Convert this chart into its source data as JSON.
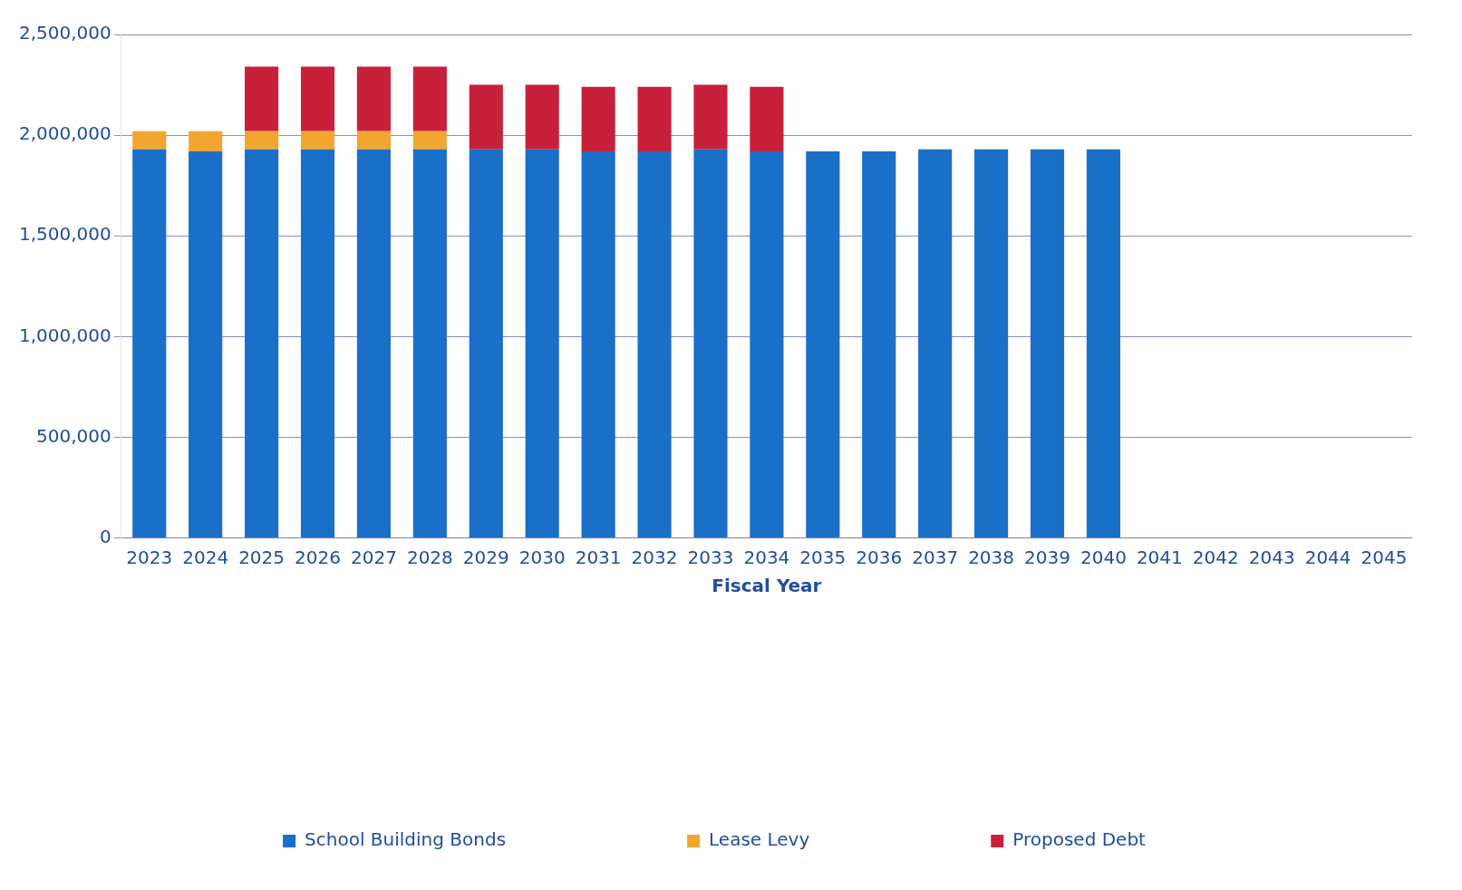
{
  "chart_data": {
    "type": "bar",
    "stacked": true,
    "xlabel": "Fiscal Year",
    "categories": [
      "2023",
      "2024",
      "2025",
      "2026",
      "2027",
      "2028",
      "2029",
      "2030",
      "2031",
      "2032",
      "2033",
      "2034",
      "2035",
      "2036",
      "2037",
      "2038",
      "2039",
      "2040",
      "2041",
      "2042",
      "2043",
      "2044",
      "2045"
    ],
    "series": [
      {
        "name": "School Building Bonds",
        "color": "#1a6fc9",
        "values": [
          1930000,
          1920000,
          1930000,
          1930000,
          1930000,
          1930000,
          1930000,
          1930000,
          1920000,
          1920000,
          1930000,
          1920000,
          1920000,
          1920000,
          1930000,
          1930000,
          1930000,
          1930000,
          0,
          0,
          0,
          0,
          0
        ]
      },
      {
        "name": "Lease Levy",
        "color": "#f2a630",
        "values": [
          90000,
          100000,
          90000,
          90000,
          90000,
          90000,
          0,
          0,
          0,
          0,
          0,
          0,
          0,
          0,
          0,
          0,
          0,
          0,
          0,
          0,
          0,
          0,
          0
        ]
      },
      {
        "name": "Proposed Debt",
        "color": "#c8203a",
        "values": [
          0,
          0,
          320000,
          320000,
          320000,
          320000,
          320000,
          320000,
          320000,
          320000,
          320000,
          320000,
          0,
          0,
          0,
          0,
          0,
          0,
          0,
          0,
          0,
          0,
          0
        ]
      }
    ],
    "ylim": [
      0,
      2500000
    ],
    "yticks": [
      0,
      {
        "value": 500000,
        "label": "500,000"
      },
      {
        "value": 1000000,
        "label": "1,000,000"
      },
      {
        "value": 1500000,
        "label": "1,500,000"
      },
      {
        "value": 2000000,
        "label": "2,000,000"
      },
      {
        "value": 2500000,
        "label": "2,500,000"
      }
    ],
    "grid": "y",
    "legend": "bottom"
  }
}
